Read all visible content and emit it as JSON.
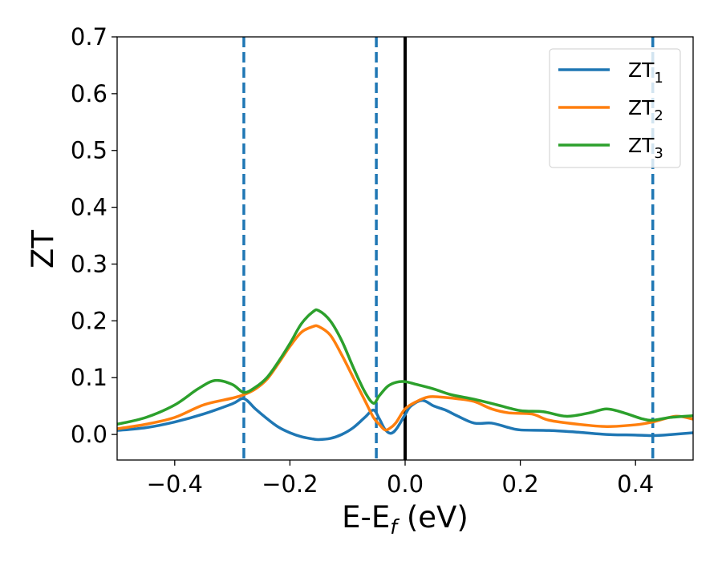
{
  "chart_data": {
    "type": "line",
    "xlabel": "E-E",
    "xlabel_sub": "f",
    "xlabel_unit": " (eV)",
    "ylabel": "ZT",
    "xlim": [
      -0.5,
      0.5
    ],
    "ylim": [
      -0.045,
      0.7
    ],
    "x_ticks": [
      -0.4,
      -0.2,
      0.0,
      0.2,
      0.4
    ],
    "x_tick_labels": [
      "−0.4",
      "−0.2",
      "0.0",
      "0.2",
      "0.4"
    ],
    "y_ticks": [
      0.0,
      0.1,
      0.2,
      0.3,
      0.4,
      0.5,
      0.6,
      0.7
    ],
    "y_tick_labels": [
      "0.0",
      "0.1",
      "0.2",
      "0.3",
      "0.4",
      "0.5",
      "0.6",
      "0.7"
    ],
    "grid": false,
    "legend_position": "top-right",
    "vertical_lines": [
      {
        "x": -0.28,
        "style": "dashed",
        "color": "#1f77b4"
      },
      {
        "x": -0.05,
        "style": "dashed",
        "color": "#1f77b4"
      },
      {
        "x": 0.0,
        "style": "solid",
        "color": "#000000"
      },
      {
        "x": 0.43,
        "style": "dashed",
        "color": "#1f77b4"
      }
    ],
    "series": [
      {
        "name": "ZT",
        "sub": "1",
        "color": "#1f77b4",
        "x": [
          -0.5,
          -0.45,
          -0.4,
          -0.35,
          -0.3,
          -0.28,
          -0.26,
          -0.24,
          -0.22,
          -0.2,
          -0.18,
          -0.16,
          -0.15,
          -0.13,
          -0.11,
          -0.09,
          -0.07,
          -0.055,
          -0.045,
          -0.035,
          -0.025,
          -0.015,
          0.0,
          0.01,
          0.03,
          0.05,
          0.07,
          0.09,
          0.12,
          0.15,
          0.18,
          0.2,
          0.25,
          0.3,
          0.35,
          0.4,
          0.43,
          0.45,
          0.5
        ],
        "y": [
          0.007,
          0.012,
          0.022,
          0.036,
          0.054,
          0.063,
          0.045,
          0.028,
          0.013,
          0.003,
          -0.004,
          -0.008,
          -0.009,
          -0.007,
          0.0,
          0.012,
          0.03,
          0.043,
          0.028,
          0.009,
          0.002,
          0.01,
          0.035,
          0.05,
          0.06,
          0.05,
          0.043,
          0.033,
          0.02,
          0.02,
          0.012,
          0.008,
          0.007,
          0.004,
          0.0,
          -0.001,
          -0.002,
          -0.001,
          0.003
        ]
      },
      {
        "name": "ZT",
        "sub": "2",
        "color": "#ff7f0e",
        "x": [
          -0.5,
          -0.45,
          -0.4,
          -0.35,
          -0.3,
          -0.28,
          -0.26,
          -0.24,
          -0.22,
          -0.2,
          -0.18,
          -0.16,
          -0.15,
          -0.13,
          -0.11,
          -0.09,
          -0.07,
          -0.055,
          -0.045,
          -0.035,
          -0.025,
          -0.015,
          0.0,
          0.02,
          0.04,
          0.06,
          0.09,
          0.12,
          0.15,
          0.18,
          0.22,
          0.25,
          0.3,
          0.35,
          0.4,
          0.43,
          0.47,
          0.5
        ],
        "y": [
          0.01,
          0.018,
          0.03,
          0.052,
          0.064,
          0.07,
          0.08,
          0.097,
          0.125,
          0.155,
          0.18,
          0.19,
          0.19,
          0.175,
          0.14,
          0.1,
          0.06,
          0.03,
          0.018,
          0.008,
          0.012,
          0.022,
          0.045,
          0.058,
          0.066,
          0.066,
          0.063,
          0.058,
          0.045,
          0.038,
          0.036,
          0.025,
          0.018,
          0.014,
          0.017,
          0.022,
          0.032,
          0.027
        ]
      },
      {
        "name": "ZT",
        "sub": "3",
        "color": "#2ca02c",
        "x": [
          -0.5,
          -0.45,
          -0.4,
          -0.36,
          -0.33,
          -0.3,
          -0.28,
          -0.26,
          -0.24,
          -0.22,
          -0.2,
          -0.18,
          -0.16,
          -0.15,
          -0.13,
          -0.11,
          -0.09,
          -0.07,
          -0.055,
          -0.045,
          -0.03,
          -0.015,
          0.0,
          0.02,
          0.05,
          0.08,
          0.12,
          0.16,
          0.2,
          0.24,
          0.28,
          0.32,
          0.35,
          0.38,
          0.41,
          0.43,
          0.46,
          0.5
        ],
        "y": [
          0.018,
          0.03,
          0.052,
          0.08,
          0.095,
          0.088,
          0.074,
          0.083,
          0.1,
          0.128,
          0.16,
          0.195,
          0.216,
          0.218,
          0.2,
          0.165,
          0.118,
          0.075,
          0.055,
          0.068,
          0.085,
          0.092,
          0.093,
          0.088,
          0.08,
          0.07,
          0.062,
          0.052,
          0.042,
          0.04,
          0.032,
          0.038,
          0.045,
          0.038,
          0.028,
          0.025,
          0.03,
          0.033
        ]
      }
    ]
  }
}
